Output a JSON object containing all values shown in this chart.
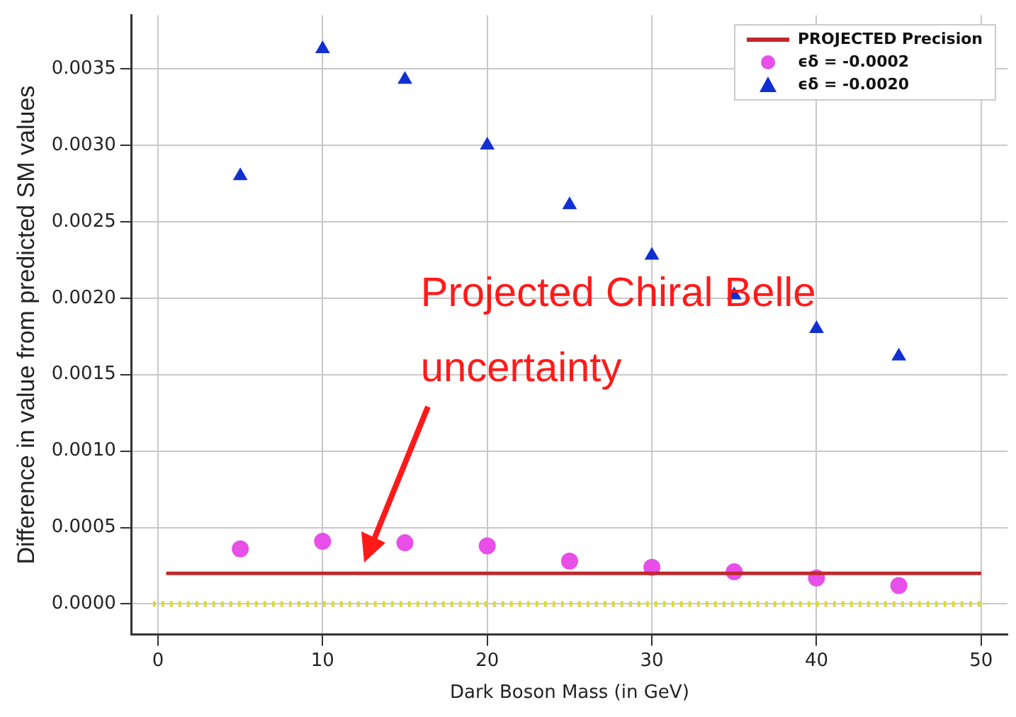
{
  "chart_data": {
    "type": "scatter",
    "xlabel": "Dark Boson Mass (in GeV)",
    "ylabel": "Difference in value from predicted SM values",
    "x": [
      5,
      10,
      15,
      20,
      25,
      30,
      35,
      40,
      45
    ],
    "series": [
      {
        "name": "PROJECTED Precision",
        "type": "line",
        "color": "#c0282d",
        "marker": "none",
        "x": [
          0.5,
          50
        ],
        "values": [
          0.0002,
          0.0002
        ]
      },
      {
        "name": "ϵδ = -0.0002",
        "color": "#e84ee8",
        "marker": "circle",
        "values": [
          0.00036,
          0.00041,
          0.0004,
          0.00038,
          0.00028,
          0.00024,
          0.00021,
          0.00017,
          0.00012
        ]
      },
      {
        "name": "ϵδ = -0.0020",
        "color": "#1030d0",
        "marker": "triangle",
        "values": [
          0.0028,
          0.00363,
          0.00343,
          0.003,
          0.00261,
          0.00228,
          0.00202,
          0.0018,
          0.00162
        ]
      }
    ],
    "ref_lines": [
      {
        "axis": "y",
        "value": 0,
        "color": "#e0d830",
        "line_style": "dotted"
      }
    ],
    "annotations": [
      "Projected Chiral Belle uncertainty"
    ],
    "xlim": [
      -1.6,
      51.6
    ],
    "xticks": [
      0,
      10,
      20,
      30,
      40,
      50
    ],
    "ylim": [
      -0.0002,
      0.00385
    ],
    "yticks": [
      {
        "value": 0,
        "label": "0.0000"
      },
      {
        "value": 0.0005,
        "label": "0.0005"
      },
      {
        "value": 0.001,
        "label": "0.0010"
      },
      {
        "value": 0.0015,
        "label": "0.0015"
      },
      {
        "value": 0.002,
        "label": "0.0020"
      },
      {
        "value": 0.0025,
        "label": "0.0025"
      },
      {
        "value": 0.003,
        "label": "0.0030"
      },
      {
        "value": 0.0035,
        "label": "0.0035"
      }
    ],
    "grid": true,
    "legend": "top right"
  }
}
